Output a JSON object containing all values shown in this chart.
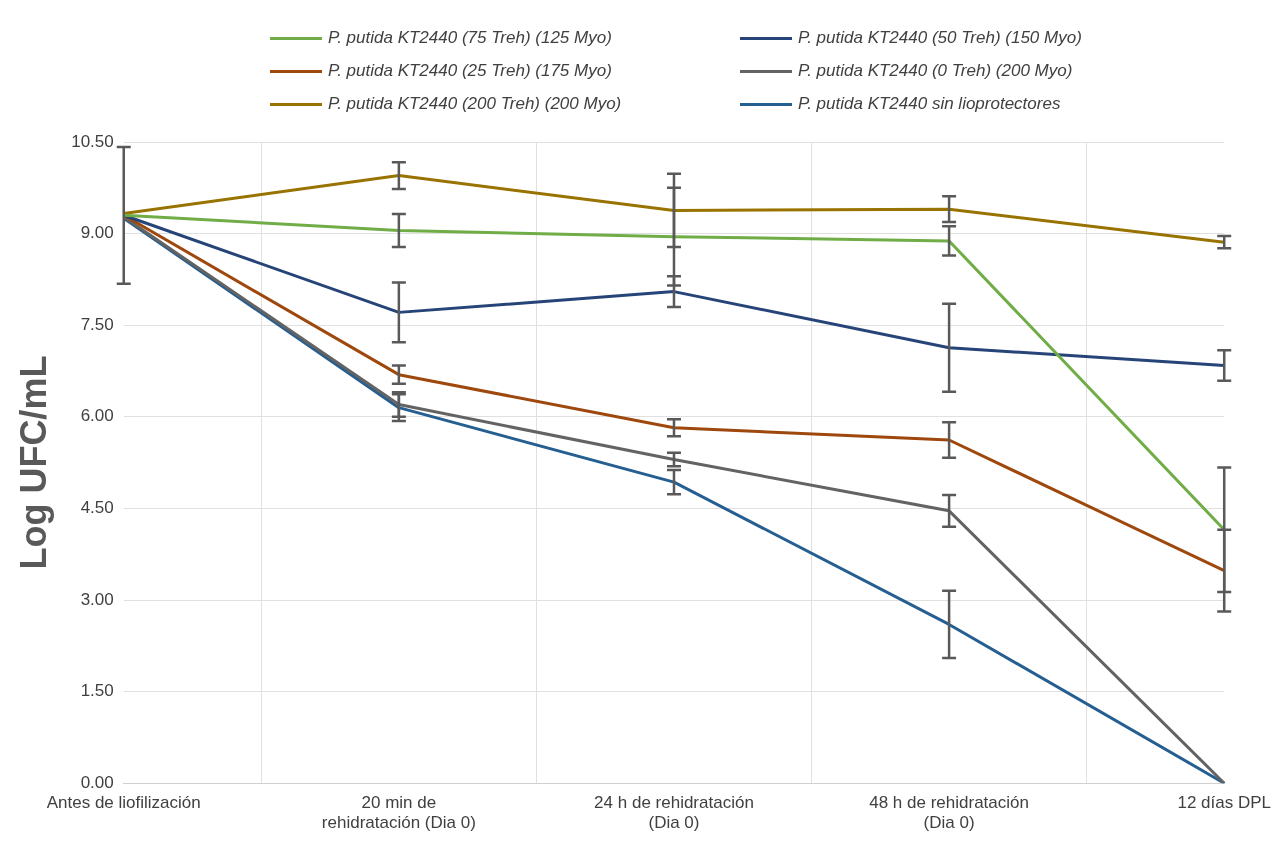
{
  "chart_data": {
    "type": "line",
    "ylabel": "Log UFC/mL",
    "categories": [
      "Antes de liofilización",
      "20 min de rehidratación (Dia 0)",
      "24 h de rehidratación (Dia 0)",
      "48 h de rehidratación (Dia 0)",
      "12 días DPL"
    ],
    "series": [
      {
        "name": "P. putida KT2440  (75 Treh) (125 Myo)",
        "color": "#70ad47",
        "values": [
          9.3,
          9.05,
          8.95,
          8.88,
          4.15
        ],
        "errors": [
          1.12,
          0.27,
          0.8,
          0.24,
          1.02
        ]
      },
      {
        "name": "P. putida KT2440  (50 Treh) (150 Myo)",
        "color": "#264478",
        "values": [
          9.3,
          7.71,
          8.05,
          7.13,
          6.84
        ],
        "errors": [
          null,
          0.49,
          0.25,
          0.72,
          0.25
        ]
      },
      {
        "name": "P. putida KT2440  (25 Treh) (175 Myo)",
        "color": "#9e480e",
        "values": [
          9.3,
          6.69,
          5.82,
          5.62,
          3.48
        ],
        "errors": [
          null,
          0.15,
          0.14,
          0.29,
          0.67
        ]
      },
      {
        "name": "P. putida KT2440  (0 Treh) (200 Myo)",
        "color": "#636363",
        "values": [
          9.27,
          6.2,
          5.3,
          4.46,
          0
        ],
        "errors": [
          null,
          0.2,
          0.11,
          0.26,
          null
        ]
      },
      {
        "name": "P. putida KT2440  (200 Treh) (200 Myo)",
        "color": "#997300",
        "values": [
          9.33,
          9.95,
          9.38,
          9.4,
          8.86
        ],
        "errors": [
          null,
          0.22,
          0.6,
          0.21,
          0.1
        ]
      },
      {
        "name": "P. putida KT2440  sin lioprotectores",
        "color": "#255e91",
        "values": [
          9.25,
          6.15,
          4.93,
          2.6,
          0
        ],
        "errors": [
          null,
          0.22,
          0.2,
          0.55,
          null
        ]
      }
    ],
    "ylim": [
      0,
      10.5
    ],
    "yticks": [
      {
        "value": 0,
        "label": "0.00"
      },
      {
        "value": 1.5,
        "label": "1.50"
      },
      {
        "value": 3,
        "label": "3.00"
      },
      {
        "value": 4.5,
        "label": "4.50"
      },
      {
        "value": 6,
        "label": "6.00"
      },
      {
        "value": 7.5,
        "label": "7.50"
      },
      {
        "value": 9,
        "label": "9.00"
      },
      {
        "value": 10.5,
        "label": "10.50"
      }
    ],
    "grid": true,
    "legend": "top",
    "marker": "none",
    "line_style": "solid"
  }
}
